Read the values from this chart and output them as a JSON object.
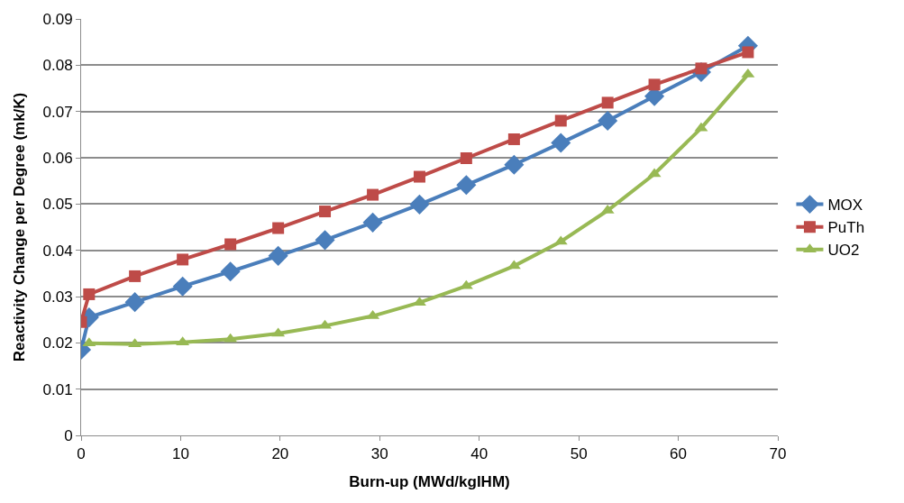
{
  "chart_data": {
    "type": "line",
    "xlabel": "Burn-up (MWd/kgIHM)",
    "ylabel": "Reactivity Change per Degree (mk/K)",
    "x": [
      0,
      0.8,
      5.4,
      10.2,
      15,
      19.8,
      24.5,
      29.3,
      34,
      38.7,
      43.5,
      48.2,
      52.9,
      57.6,
      62.3,
      67
    ],
    "series": [
      {
        "name": "MOX",
        "color": "#4a7ebb",
        "marker": "diamond",
        "values": [
          0.0185,
          0.0255,
          0.0288,
          0.0322,
          0.0354,
          0.0388,
          0.0422,
          0.046,
          0.0499,
          0.0541,
          0.0585,
          0.0632,
          0.068,
          0.0733,
          0.0785,
          0.0842
        ]
      },
      {
        "name": "PuTh",
        "color": "#be4b48",
        "marker": "square",
        "values": [
          0.0245,
          0.0305,
          0.0344,
          0.038,
          0.0413,
          0.0448,
          0.0484,
          0.052,
          0.0559,
          0.0599,
          0.064,
          0.068,
          0.0719,
          0.0758,
          0.0793,
          0.0828
        ]
      },
      {
        "name": "UO2",
        "color": "#98b954",
        "marker": "triangle",
        "values": [
          null,
          0.0199,
          0.0197,
          0.0201,
          0.0208,
          0.022,
          0.0237,
          0.0258,
          0.0287,
          0.0323,
          0.0366,
          0.0419,
          0.0486,
          0.0565,
          0.0664,
          0.078
        ]
      }
    ],
    "xlim": [
      0,
      70
    ],
    "xticks": [
      0,
      10,
      20,
      30,
      40,
      50,
      60,
      70
    ],
    "ylim": [
      0,
      0.09
    ],
    "yticks": [
      {
        "value": 0,
        "label": "0"
      },
      0.01,
      0.02,
      0.03,
      0.04,
      0.05,
      0.06,
      0.07,
      0.08,
      0.09
    ],
    "grid": "y",
    "legend": "right"
  }
}
